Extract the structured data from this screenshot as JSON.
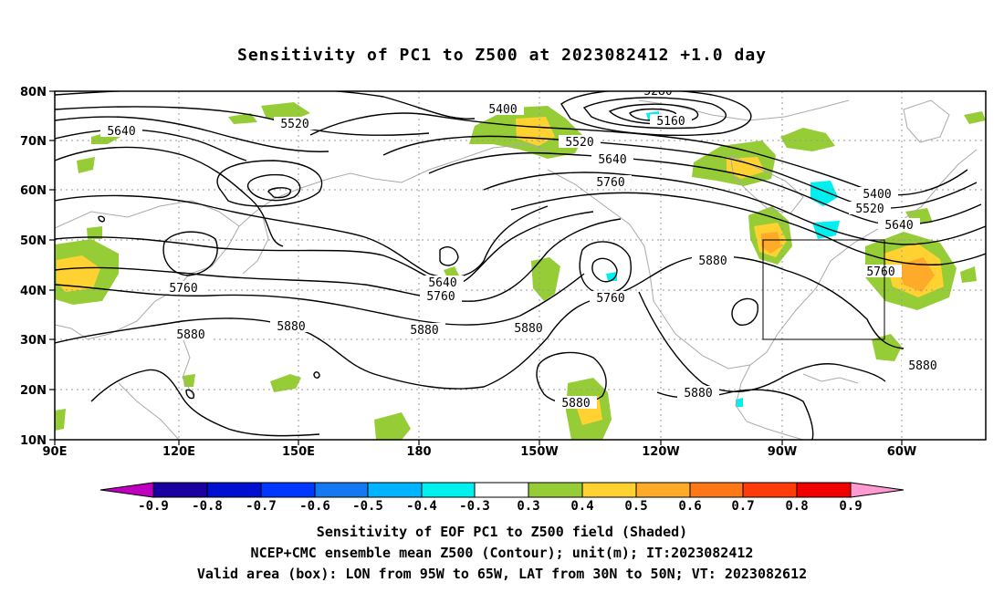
{
  "title": "Sensitivity of PC1 to Z500 at 2023082412 +1.0 day",
  "map": {
    "lon_labels": [
      "90E",
      "120E",
      "150E",
      "180",
      "150W",
      "120W",
      "90W",
      "60W"
    ],
    "lat_labels": [
      "80N",
      "70N",
      "60N",
      "50N",
      "40N",
      "30N",
      "20N",
      "10N"
    ],
    "contour_labels": [
      "5280",
      "5400",
      "5160",
      "5520",
      "5640",
      "5520",
      "5640",
      "5760",
      "5400",
      "5520",
      "5640",
      "5760",
      "5760",
      "5640",
      "5760",
      "5880",
      "5880",
      "5880",
      "5880",
      "5880",
      "5760",
      "5880",
      "5880",
      "5880"
    ],
    "box": {
      "lon_from": "95W",
      "lon_to": "65W",
      "lat_from": "30N",
      "lat_to": "50N"
    }
  },
  "colorbar": {
    "labels": [
      "-0.9",
      "-0.8",
      "-0.7",
      "-0.6",
      "-0.5",
      "-0.4",
      "-0.3",
      "0.3",
      "0.4",
      "0.5",
      "0.6",
      "0.7",
      "0.8",
      "0.9"
    ],
    "colors": [
      "#c000c0",
      "#1a00a0",
      "#0010d0",
      "#0038ff",
      "#1478f0",
      "#00b4ff",
      "#00f0f0",
      "#ffffff",
      "#96cd37",
      "#ffd232",
      "#ffaa28",
      "#ff7818",
      "#ff3c0a",
      "#f00000",
      "#ff9ad2"
    ]
  },
  "caption": {
    "line1": "Sensitivity of EOF PC1 to Z500 field (Shaded)",
    "line2": "NCEP+CMC ensemble mean Z500 (Contour); unit(m); IT:2023082412",
    "line3": "Valid area (box): LON from 95W to 65W, LAT from 30N to 50N; VT: 2023082612"
  }
}
